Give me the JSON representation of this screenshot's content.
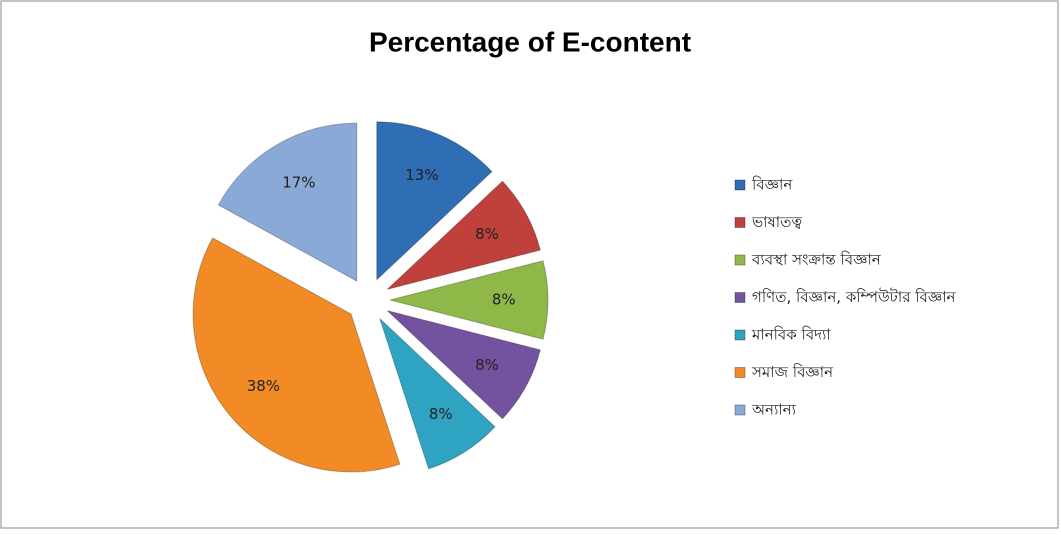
{
  "chart_data": {
    "type": "pie",
    "title": "Percentage of E-content",
    "categories": [
      "বিজ্ঞান",
      "ভাষাতত্ব",
      "ব্যবস্থা  সংক্রান্ত  বিজ্ঞান",
      "গণিত,  বিজ্ঞান,  কম্পিউটার  বিজ্ঞান",
      "মানবিক  বিদ্যা",
      "সমাজ  বিজ্ঞান",
      "অন্যান্য"
    ],
    "values": [
      13,
      8,
      8,
      8,
      8,
      38,
      17
    ],
    "value_labels": [
      "13%",
      "8%",
      "8%",
      "8%",
      "8%",
      "38%",
      "17%"
    ],
    "colors": [
      "#2f6db5",
      "#c0403c",
      "#8fb849",
      "#7352a0",
      "#2fa3c2",
      "#f28a26",
      "#8aa9d6"
    ],
    "legend": "right"
  }
}
